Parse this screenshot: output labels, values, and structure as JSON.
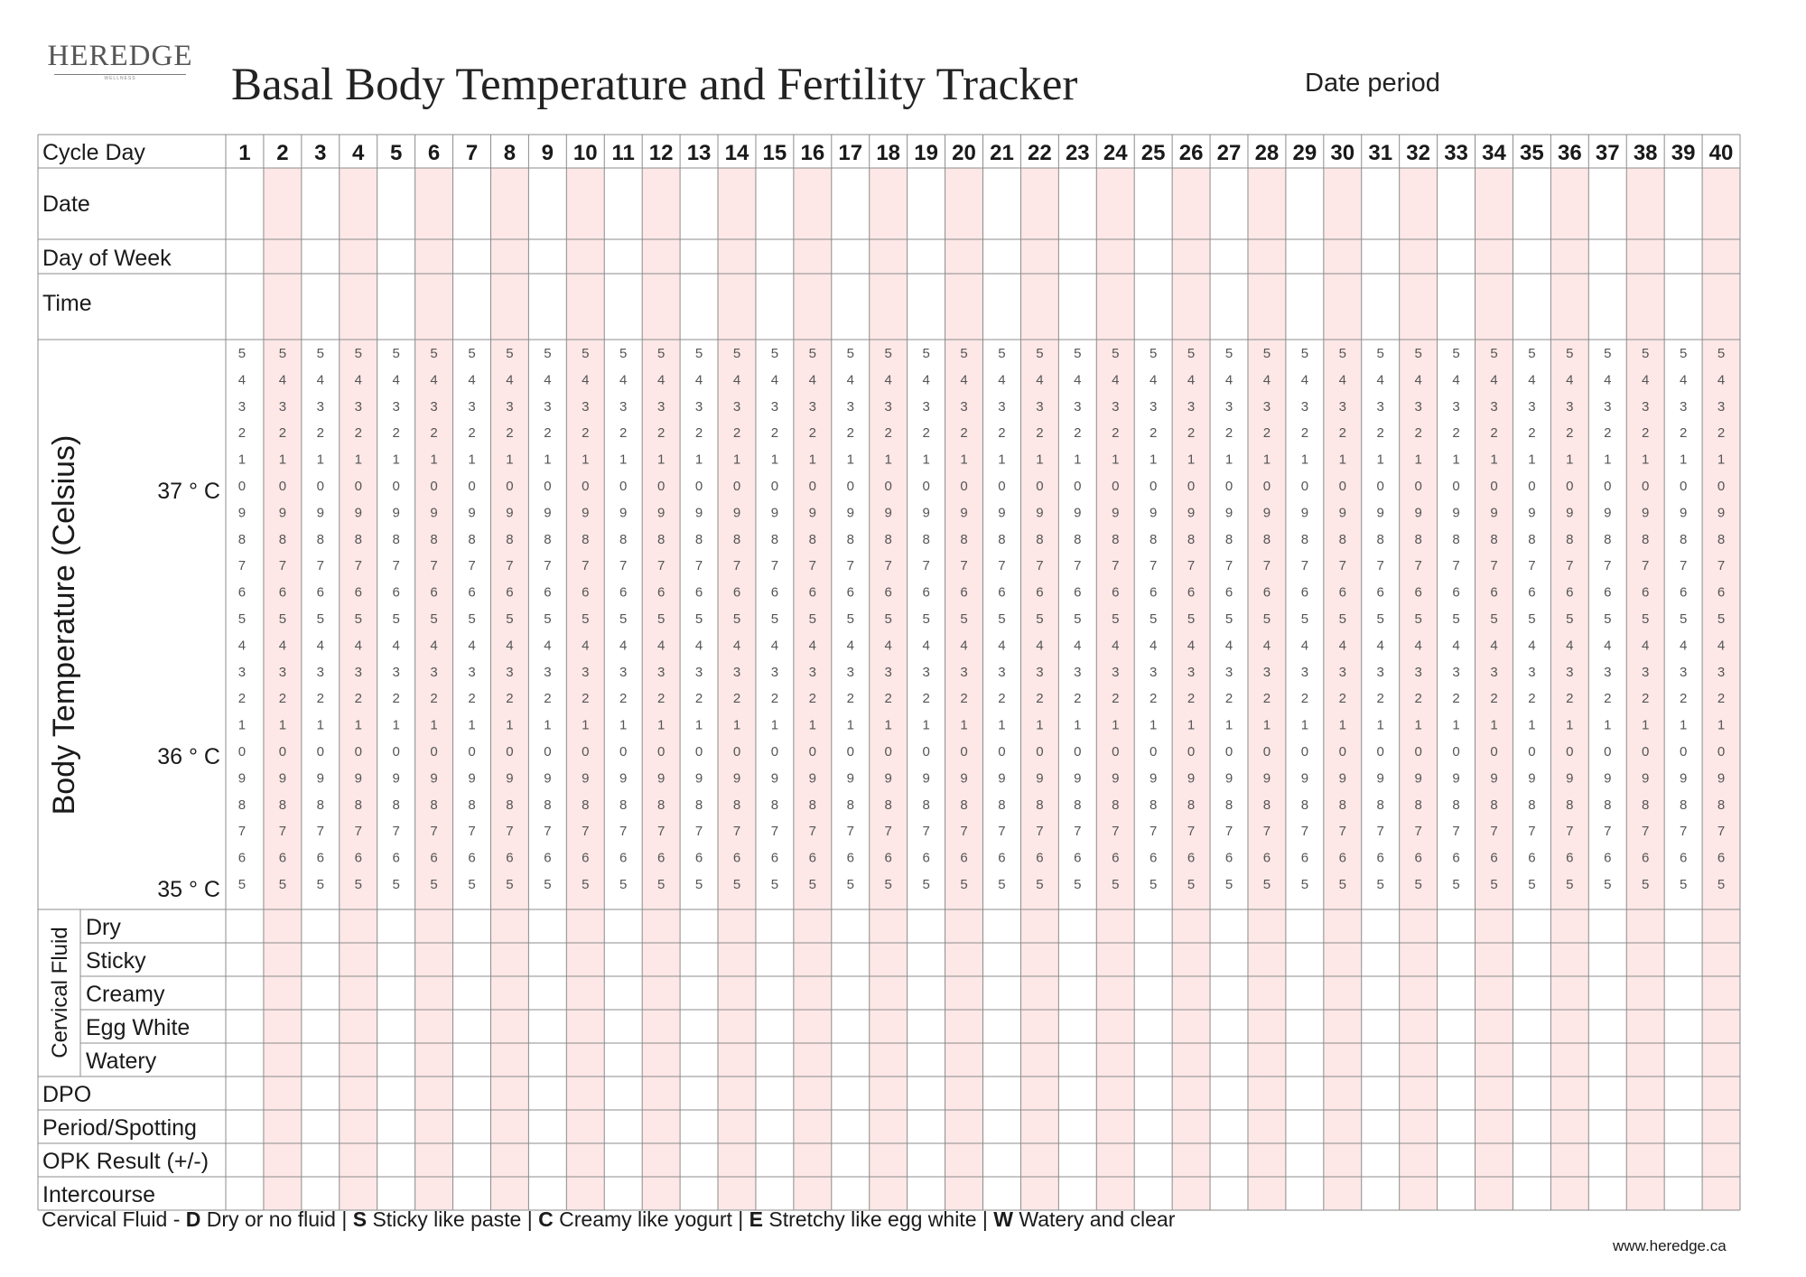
{
  "logo": {
    "wordmark": "HEREDGE",
    "tagline": "WELLNESS"
  },
  "title": "Basal Body Temperature and Fertility Tracker",
  "date_period_label": "Date period",
  "cycle_day_label": "Cycle Day",
  "cycle_days": [
    "1",
    "2",
    "3",
    "4",
    "5",
    "6",
    "7",
    "8",
    "9",
    "10",
    "11",
    "12",
    "13",
    "14",
    "15",
    "16",
    "17",
    "18",
    "19",
    "20",
    "21",
    "22",
    "23",
    "24",
    "25",
    "26",
    "27",
    "28",
    "29",
    "30",
    "31",
    "32",
    "33",
    "34",
    "35",
    "36",
    "37",
    "38",
    "39",
    "40"
  ],
  "row_labels": {
    "date": "Date",
    "day_of_week": "Day of Week",
    "time": "Time"
  },
  "temperature": {
    "axis_label": "Body Temperature (Celsius)",
    "level_labels": [
      {
        "text": "37 ° C",
        "at_row": 5
      },
      {
        "text": "36 ° C",
        "at_row": 15
      },
      {
        "text": "35 ° C",
        "at_row": 20
      }
    ],
    "scale_digits": [
      "5",
      "4",
      "3",
      "2",
      "1",
      "0",
      "9",
      "8",
      "7",
      "6",
      "5",
      "4",
      "3",
      "2",
      "1",
      "0",
      "9",
      "8",
      "7",
      "6",
      "5"
    ]
  },
  "cervical_fluid": {
    "group_label": "Cervical Fluid",
    "options": [
      "Dry",
      "Sticky",
      "Creamy",
      "Egg White",
      "Watery"
    ]
  },
  "bottom_rows": [
    "DPO",
    "Period/Spotting",
    "OPK Result (+/-)",
    "Intercourse"
  ],
  "legend": {
    "prefix": "Cervical Fluid - ",
    "items": [
      {
        "key": "D",
        "text": " Dry or no fluid"
      },
      {
        "key": "S",
        "text": " Sticky like paste"
      },
      {
        "key": "C",
        "text": " Creamy like yogurt"
      },
      {
        "key": "E",
        "text": " Stretchy like egg white"
      },
      {
        "key": "W",
        "text": " Watery and clear"
      }
    ],
    "separator": " | "
  },
  "website": "www.heredge.ca",
  "colors": {
    "even_column_shade": "#fde7e7",
    "grid_line": "#8c8c8c",
    "text": "#1a1a1a",
    "scale_text": "#555555"
  }
}
